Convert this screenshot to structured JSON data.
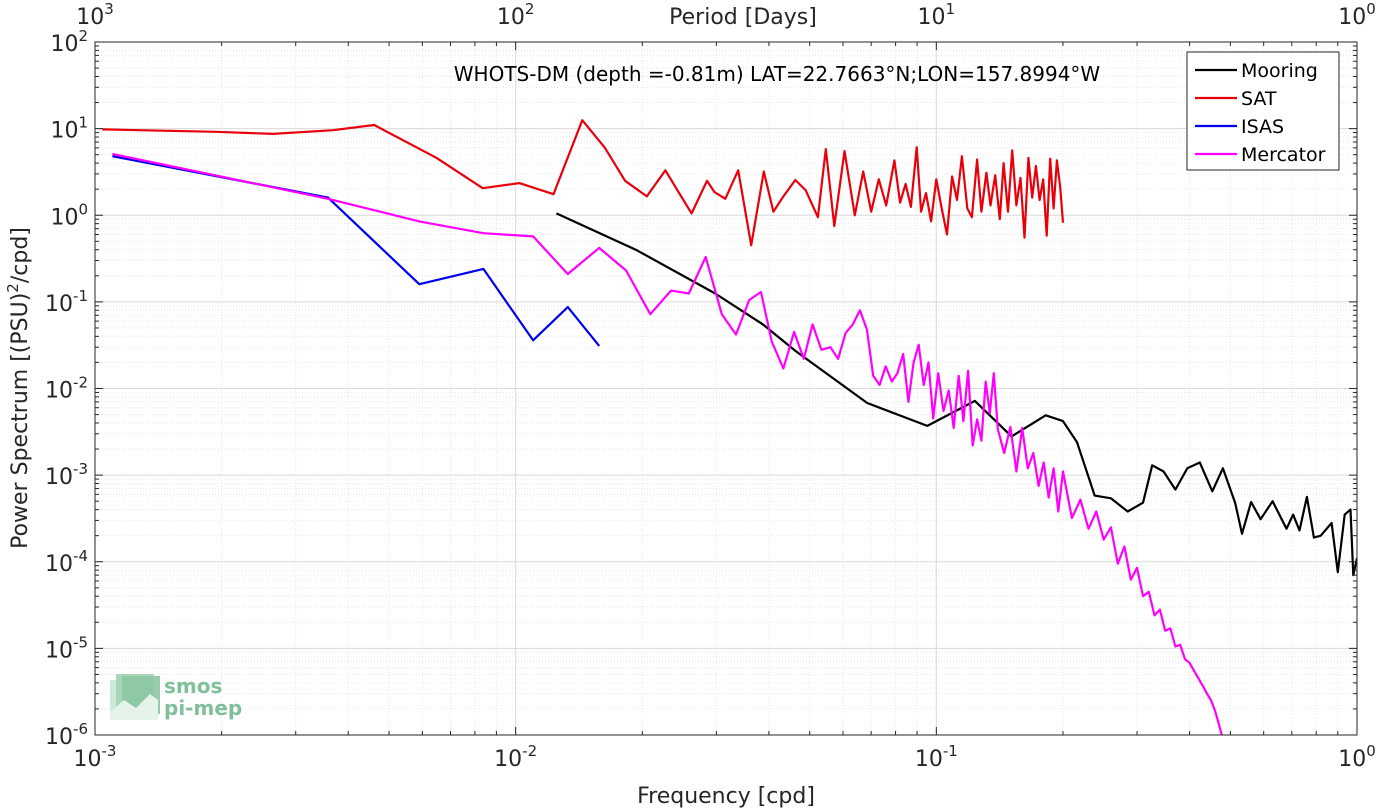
{
  "chart_data": {
    "type": "line",
    "title": "WHOTS-DM (depth =-0.81m) LAT=22.7663°N;LON=157.8994°W",
    "xlabel": "Frequency [cpd]",
    "ylabel": "Power Spectrum [(PSU)",
    "ylabel_sup": "2",
    "ylabel_tail": "/cpd]",
    "top_xlabel": "Period [Days]",
    "x_scale": "log",
    "y_scale": "log",
    "xlim": [
      0.001,
      1
    ],
    "ylim": [
      1e-06,
      100
    ],
    "grid": true,
    "legend_position": "top-right",
    "x_ticks": [
      {
        "value": 0.001,
        "base": "10",
        "exp": "-3"
      },
      {
        "value": 0.01,
        "base": "10",
        "exp": "-2"
      },
      {
        "value": 0.1,
        "base": "10",
        "exp": "-1"
      },
      {
        "value": 1,
        "base": "10",
        "exp": "0"
      }
    ],
    "y_ticks": [
      {
        "value": 1e-06,
        "base": "10",
        "exp": "-6"
      },
      {
        "value": 1e-05,
        "base": "10",
        "exp": "-5"
      },
      {
        "value": 0.0001,
        "base": "10",
        "exp": "-4"
      },
      {
        "value": 0.001,
        "base": "10",
        "exp": "-3"
      },
      {
        "value": 0.01,
        "base": "10",
        "exp": "-2"
      },
      {
        "value": 0.1,
        "base": "10",
        "exp": "-1"
      },
      {
        "value": 1,
        "base": "10",
        "exp": "0"
      },
      {
        "value": 10,
        "base": "10",
        "exp": "1"
      },
      {
        "value": 100,
        "base": "10",
        "exp": "2"
      }
    ],
    "top_ticks": [
      {
        "freq": 0.001,
        "base": "10",
        "exp": "3"
      },
      {
        "freq": 0.01,
        "base": "10",
        "exp": "2"
      },
      {
        "freq": 0.1,
        "base": "10",
        "exp": "1"
      },
      {
        "freq": 1,
        "base": "10",
        "exp": "0"
      }
    ],
    "series": [
      {
        "name": "Mooring",
        "color": "#000000",
        "x": [
          0.0125,
          0.0193,
          0.0298,
          0.0387,
          0.0463,
          0.0685,
          0.0952,
          0.1235,
          0.151,
          0.182,
          0.2,
          0.216,
          0.238,
          0.26,
          0.285,
          0.31,
          0.326,
          0.347,
          0.37,
          0.395,
          0.423,
          0.453,
          0.48,
          0.513,
          0.533,
          0.56,
          0.59,
          0.63,
          0.68,
          0.705,
          0.73,
          0.76,
          0.79,
          0.82,
          0.87,
          0.9,
          0.935,
          0.965,
          0.98,
          1.0
        ],
        "y": [
          1.05,
          0.4,
          0.125,
          0.055,
          0.027,
          0.0068,
          0.0037,
          0.0072,
          0.0028,
          0.0049,
          0.0042,
          0.0024,
          0.00058,
          0.00054,
          0.00038,
          0.00048,
          0.0013,
          0.0011,
          0.00068,
          0.0012,
          0.0014,
          0.00065,
          0.0012,
          0.00048,
          0.00021,
          0.00049,
          0.00031,
          0.0005,
          0.00024,
          0.00035,
          0.00023,
          0.00056,
          0.00019,
          0.0002,
          0.00028,
          7.6e-05,
          0.00035,
          0.0004,
          7e-05,
          0.00011
        ]
      },
      {
        "name": "SAT",
        "color": "#e8000b",
        "x": [
          0.00104,
          0.00194,
          0.00265,
          0.00368,
          0.00461,
          0.00648,
          0.00835,
          0.0102,
          0.0123,
          0.0144,
          0.0163,
          0.0182,
          0.0205,
          0.0227,
          0.0243,
          0.0262,
          0.0285,
          0.0297,
          0.0315,
          0.0338,
          0.0363,
          0.0389,
          0.041,
          0.0433,
          0.0462,
          0.0489,
          0.0523,
          0.0546,
          0.0572,
          0.0605,
          0.064,
          0.067,
          0.07,
          0.073,
          0.076,
          0.0795,
          0.082,
          0.0845,
          0.087,
          0.0898,
          0.092,
          0.0945,
          0.0972,
          0.1,
          0.103,
          0.106,
          0.109,
          0.112,
          0.115,
          0.1185,
          0.1215,
          0.125,
          0.128,
          0.1315,
          0.1345,
          0.138,
          0.1415,
          0.1445,
          0.148,
          0.1515,
          0.155,
          0.1585,
          0.162,
          0.1655,
          0.169,
          0.1725,
          0.176,
          0.1795,
          0.183,
          0.1865,
          0.19,
          0.1935,
          0.197,
          0.2
        ],
        "y": [
          9.8,
          9.2,
          8.7,
          9.6,
          11.0,
          4.6,
          2.05,
          2.35,
          1.75,
          12.5,
          6.0,
          2.5,
          1.65,
          3.3,
          1.9,
          1.05,
          2.5,
          1.85,
          1.55,
          3.3,
          0.45,
          3.2,
          1.1,
          1.65,
          2.55,
          1.95,
          0.95,
          5.8,
          0.75,
          5.5,
          1.0,
          3.2,
          1.1,
          2.6,
          1.3,
          4.3,
          1.4,
          2.3,
          1.25,
          6.1,
          1.1,
          1.8,
          0.85,
          2.6,
          1.2,
          0.6,
          2.8,
          1.5,
          4.8,
          1.2,
          0.95,
          4.4,
          1.1,
          3.1,
          1.3,
          2.9,
          0.9,
          4.0,
          1.1,
          5.6,
          1.3,
          2.7,
          0.55,
          4.6,
          1.6,
          3.7,
          1.5,
          2.6,
          0.58,
          4.5,
          1.2,
          4.3,
          2.1,
          0.82
        ]
      },
      {
        "name": "ISAS",
        "color": "#0000ee",
        "x": [
          0.0011,
          0.00358,
          0.0059,
          0.00838,
          0.011,
          0.0133,
          0.0158
        ],
        "y": [
          4.8,
          1.6,
          0.16,
          0.24,
          0.036,
          0.087,
          0.031
        ]
      },
      {
        "name": "Mercator",
        "color": "#ff00ff",
        "x": [
          0.0011,
          0.00358,
          0.0059,
          0.00838,
          0.011,
          0.0133,
          0.0158,
          0.0183,
          0.0209,
          0.0234,
          0.0258,
          0.0283,
          0.0309,
          0.0334,
          0.0359,
          0.0383,
          0.0406,
          0.0433,
          0.0459,
          0.0484,
          0.0508,
          0.0533,
          0.056,
          0.0584,
          0.0609,
          0.0633,
          0.0658,
          0.0684,
          0.0708,
          0.0733,
          0.0758,
          0.0784,
          0.0808,
          0.0834,
          0.0858,
          0.0883,
          0.0908,
          0.0933,
          0.0958,
          0.0983,
          0.101,
          0.104,
          0.107,
          0.11,
          0.113,
          0.116,
          0.119,
          0.122,
          0.125,
          0.128,
          0.131,
          0.134,
          0.137,
          0.14,
          0.145,
          0.15,
          0.155,
          0.16,
          0.165,
          0.17,
          0.175,
          0.18,
          0.185,
          0.19,
          0.195,
          0.2,
          0.21,
          0.22,
          0.23,
          0.24,
          0.25,
          0.26,
          0.27,
          0.28,
          0.29,
          0.3,
          0.31,
          0.32,
          0.33,
          0.34,
          0.35,
          0.36,
          0.37,
          0.38,
          0.39,
          0.4,
          0.41,
          0.42,
          0.43,
          0.44,
          0.45,
          0.46,
          0.47,
          0.48
        ],
        "y": [
          5.1,
          1.55,
          0.85,
          0.62,
          0.57,
          0.21,
          0.42,
          0.23,
          0.072,
          0.135,
          0.125,
          0.33,
          0.072,
          0.042,
          0.105,
          0.13,
          0.035,
          0.017,
          0.045,
          0.022,
          0.055,
          0.028,
          0.03,
          0.022,
          0.044,
          0.055,
          0.08,
          0.048,
          0.014,
          0.011,
          0.018,
          0.012,
          0.015,
          0.025,
          0.007,
          0.02,
          0.032,
          0.011,
          0.02,
          0.0045,
          0.015,
          0.0055,
          0.0095,
          0.0035,
          0.014,
          0.0042,
          0.016,
          0.0022,
          0.0044,
          0.0025,
          0.012,
          0.0052,
          0.015,
          0.0034,
          0.0018,
          0.0036,
          0.0011,
          0.0035,
          0.0012,
          0.0018,
          0.00075,
          0.0014,
          0.00055,
          0.0012,
          0.00038,
          0.0011,
          0.00032,
          0.00052,
          0.00024,
          0.00038,
          0.00018,
          0.00025,
          9.5e-05,
          0.00015,
          6.2e-05,
          8.5e-05,
          4e-05,
          4.5e-05,
          2.4e-05,
          2.8e-05,
          1.6e-05,
          1.7e-05,
          1.05e-05,
          1.1e-05,
          7.5e-06,
          6.8e-06,
          5.5e-06,
          4.5e-06,
          3.7e-06,
          3e-06,
          2.5e-06,
          1.9e-06,
          1.3e-06,
          9e-07
        ]
      }
    ]
  },
  "logo": {
    "line1": "smos",
    "line2": "pi-mep"
  }
}
